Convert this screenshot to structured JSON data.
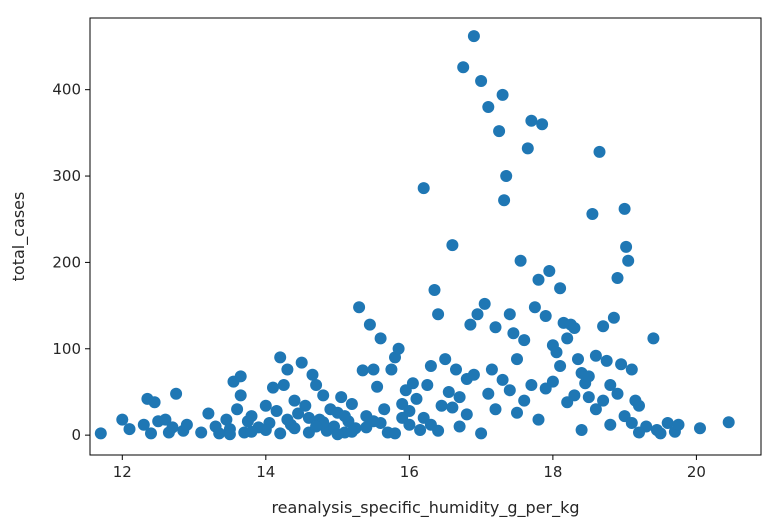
{
  "chart_data": {
    "type": "scatter",
    "xlabel": "reanalysis_specific_humidity_g_per_kg",
    "ylabel": "total_cases",
    "xlim": [
      11.55,
      20.9
    ],
    "ylim": [
      -23,
      483
    ],
    "xticks": [
      12,
      14,
      16,
      18,
      20
    ],
    "yticks": [
      0,
      100,
      200,
      300,
      400
    ],
    "grid": false,
    "legend": "none",
    "color": "#1f77b4",
    "points": [
      [
        11.7,
        2
      ],
      [
        12.0,
        18
      ],
      [
        12.1,
        7
      ],
      [
        12.3,
        12
      ],
      [
        12.35,
        42
      ],
      [
        12.45,
        38
      ],
      [
        12.4,
        2
      ],
      [
        12.5,
        16
      ],
      [
        12.6,
        18
      ],
      [
        12.65,
        3
      ],
      [
        12.7,
        9
      ],
      [
        12.75,
        48
      ],
      [
        12.85,
        5
      ],
      [
        12.9,
        12
      ],
      [
        13.1,
        3
      ],
      [
        13.2,
        25
      ],
      [
        13.3,
        10
      ],
      [
        13.35,
        2
      ],
      [
        13.45,
        18
      ],
      [
        13.5,
        7
      ],
      [
        13.55,
        62
      ],
      [
        13.6,
        30
      ],
      [
        13.65,
        68
      ],
      [
        13.65,
        46
      ],
      [
        13.7,
        3
      ],
      [
        13.75,
        16
      ],
      [
        13.8,
        22
      ],
      [
        13.9,
        9
      ],
      [
        14.0,
        34
      ],
      [
        14.05,
        14
      ],
      [
        14.1,
        55
      ],
      [
        14.15,
        28
      ],
      [
        14.2,
        90
      ],
      [
        14.25,
        58
      ],
      [
        14.3,
        76
      ],
      [
        14.35,
        12
      ],
      [
        14.4,
        40
      ],
      [
        14.45,
        25
      ],
      [
        14.5,
        84
      ],
      [
        14.55,
        34
      ],
      [
        14.6,
        3
      ],
      [
        14.65,
        70
      ],
      [
        14.7,
        58
      ],
      [
        14.75,
        18
      ],
      [
        14.8,
        46
      ],
      [
        14.85,
        5
      ],
      [
        14.9,
        30
      ],
      [
        14.95,
        10
      ],
      [
        15.0,
        26
      ],
      [
        15.05,
        44
      ],
      [
        15.1,
        3
      ],
      [
        15.15,
        16
      ],
      [
        15.2,
        36
      ],
      [
        15.25,
        8
      ],
      [
        15.3,
        148
      ],
      [
        15.35,
        75
      ],
      [
        15.4,
        22
      ],
      [
        15.45,
        128
      ],
      [
        15.5,
        76
      ],
      [
        15.55,
        56
      ],
      [
        15.6,
        112
      ],
      [
        15.65,
        30
      ],
      [
        15.7,
        3
      ],
      [
        15.75,
        76
      ],
      [
        15.8,
        90
      ],
      [
        15.85,
        100
      ],
      [
        15.9,
        36
      ],
      [
        15.95,
        52
      ],
      [
        16.0,
        12
      ],
      [
        16.05,
        60
      ],
      [
        16.1,
        42
      ],
      [
        16.15,
        6
      ],
      [
        16.2,
        286
      ],
      [
        16.25,
        58
      ],
      [
        16.3,
        80
      ],
      [
        16.35,
        168
      ],
      [
        16.4,
        140
      ],
      [
        16.45,
        34
      ],
      [
        16.5,
        88
      ],
      [
        16.55,
        50
      ],
      [
        16.6,
        220
      ],
      [
        16.65,
        76
      ],
      [
        16.7,
        10
      ],
      [
        16.75,
        426
      ],
      [
        16.8,
        65
      ],
      [
        16.85,
        128
      ],
      [
        16.9,
        462
      ],
      [
        16.95,
        140
      ],
      [
        17.0,
        410
      ],
      [
        17.05,
        152
      ],
      [
        17.1,
        380
      ],
      [
        17.15,
        76
      ],
      [
        17.2,
        125
      ],
      [
        17.25,
        352
      ],
      [
        17.3,
        394
      ],
      [
        17.32,
        272
      ],
      [
        17.35,
        300
      ],
      [
        17.4,
        140
      ],
      [
        17.45,
        118
      ],
      [
        17.5,
        88
      ],
      [
        17.55,
        202
      ],
      [
        17.6,
        110
      ],
      [
        17.65,
        332
      ],
      [
        17.7,
        364
      ],
      [
        17.75,
        148
      ],
      [
        17.8,
        180
      ],
      [
        17.85,
        360
      ],
      [
        17.9,
        138
      ],
      [
        17.95,
        190
      ],
      [
        18.0,
        104
      ],
      [
        18.05,
        96
      ],
      [
        18.1,
        170
      ],
      [
        18.15,
        130
      ],
      [
        18.2,
        112
      ],
      [
        18.25,
        128
      ],
      [
        18.3,
        124
      ],
      [
        18.35,
        88
      ],
      [
        18.4,
        72
      ],
      [
        18.45,
        60
      ],
      [
        18.5,
        44
      ],
      [
        18.55,
        256
      ],
      [
        18.6,
        92
      ],
      [
        18.65,
        328
      ],
      [
        18.7,
        126
      ],
      [
        18.75,
        86
      ],
      [
        18.8,
        58
      ],
      [
        18.85,
        136
      ],
      [
        18.9,
        182
      ],
      [
        18.95,
        82
      ],
      [
        19.0,
        262
      ],
      [
        19.02,
        218
      ],
      [
        19.05,
        202
      ],
      [
        19.1,
        76
      ],
      [
        19.15,
        40
      ],
      [
        19.2,
        34
      ],
      [
        19.3,
        10
      ],
      [
        19.4,
        112
      ],
      [
        19.45,
        6
      ],
      [
        19.5,
        2
      ],
      [
        19.6,
        14
      ],
      [
        19.7,
        4
      ],
      [
        19.75,
        12
      ],
      [
        20.05,
        8
      ],
      [
        20.45,
        15
      ],
      [
        13.5,
        1
      ],
      [
        13.8,
        4
      ],
      [
        14.0,
        6
      ],
      [
        14.2,
        2
      ],
      [
        14.4,
        8
      ],
      [
        14.6,
        20
      ],
      [
        14.8,
        15
      ],
      [
        15.0,
        1
      ],
      [
        15.2,
        4
      ],
      [
        15.4,
        9
      ],
      [
        15.6,
        14
      ],
      [
        15.8,
        2
      ],
      [
        16.0,
        28
      ],
      [
        16.2,
        20
      ],
      [
        16.4,
        5
      ],
      [
        16.6,
        32
      ],
      [
        16.8,
        24
      ],
      [
        17.0,
        2
      ],
      [
        17.2,
        30
      ],
      [
        17.4,
        52
      ],
      [
        17.6,
        40
      ],
      [
        17.8,
        18
      ],
      [
        18.0,
        62
      ],
      [
        18.2,
        38
      ],
      [
        18.4,
        6
      ],
      [
        18.6,
        30
      ],
      [
        18.8,
        12
      ],
      [
        19.0,
        22
      ],
      [
        19.2,
        3
      ],
      [
        14.3,
        18
      ],
      [
        14.7,
        10
      ],
      [
        15.1,
        22
      ],
      [
        15.5,
        16
      ],
      [
        15.9,
        20
      ],
      [
        16.3,
        12
      ],
      [
        16.7,
        44
      ],
      [
        17.1,
        48
      ],
      [
        17.5,
        26
      ],
      [
        17.9,
        54
      ],
      [
        18.3,
        46
      ],
      [
        18.7,
        40
      ],
      [
        19.1,
        14
      ],
      [
        16.9,
        70
      ],
      [
        17.3,
        64
      ],
      [
        17.7,
        58
      ],
      [
        18.1,
        80
      ],
      [
        18.5,
        68
      ],
      [
        18.9,
        48
      ]
    ]
  }
}
